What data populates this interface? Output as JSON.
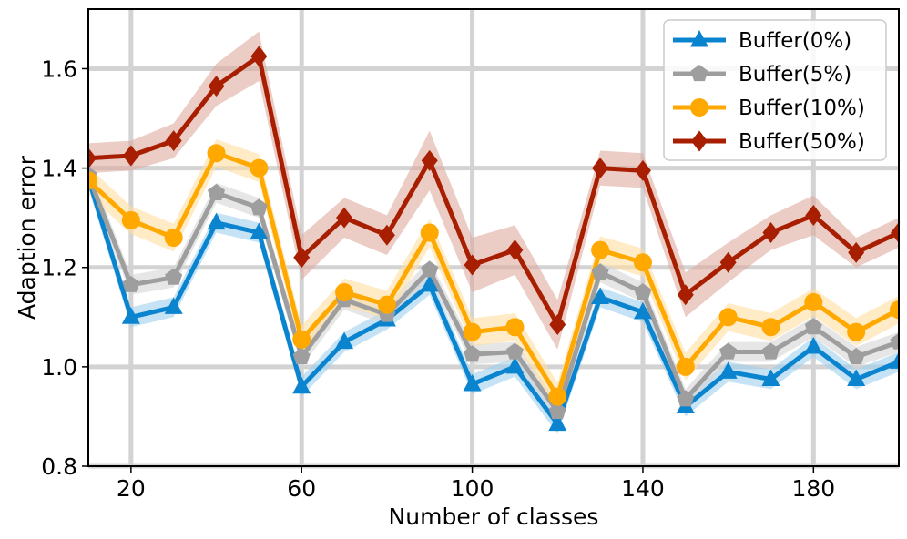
{
  "chart_data": {
    "type": "line",
    "xlabel": "Number of classes",
    "ylabel": "Adaption error",
    "xlim": [
      10,
      200
    ],
    "ylim": [
      0.8,
      1.72
    ],
    "xticks": [
      20,
      60,
      100,
      140,
      180
    ],
    "yticks": [
      0.8,
      1.0,
      1.2,
      1.4,
      1.6
    ],
    "xtick_labels": [
      "20",
      "60",
      "100",
      "140",
      "180"
    ],
    "ytick_labels": [
      "0.8",
      "1.0",
      "1.2",
      "1.4",
      "1.6"
    ],
    "grid": true,
    "legend_position": "top-right",
    "x": [
      10,
      20,
      30,
      40,
      50,
      60,
      70,
      80,
      90,
      100,
      110,
      120,
      130,
      140,
      150,
      160,
      170,
      180,
      190,
      200
    ],
    "series": [
      {
        "name": "Buffer(0%)",
        "color": "#0a84cf",
        "band_color": "#9fd0ef",
        "marker": "triangle",
        "values": [
          1.38,
          1.1,
          1.12,
          1.29,
          1.27,
          0.96,
          1.05,
          1.095,
          1.165,
          0.965,
          1.0,
          0.885,
          1.14,
          1.11,
          0.92,
          0.99,
          0.975,
          1.04,
          0.975,
          1.01
        ],
        "band": 0.02
      },
      {
        "name": "Buffer(5%)",
        "color": "#9e9e9e",
        "band_color": "#d6d6d6",
        "marker": "pentagon",
        "values": [
          1.385,
          1.165,
          1.18,
          1.35,
          1.32,
          1.02,
          1.135,
          1.105,
          1.195,
          1.025,
          1.03,
          0.91,
          1.19,
          1.15,
          0.935,
          1.03,
          1.03,
          1.08,
          1.02,
          1.05
        ],
        "band": 0.02
      },
      {
        "name": "Buffer(10%)",
        "color": "#ffa800",
        "band_color": "#ffdea0",
        "marker": "circle",
        "values": [
          1.375,
          1.295,
          1.26,
          1.43,
          1.4,
          1.055,
          1.15,
          1.125,
          1.27,
          1.07,
          1.08,
          0.94,
          1.235,
          1.21,
          1.0,
          1.1,
          1.08,
          1.13,
          1.07,
          1.115
        ],
        "band": 0.028
      },
      {
        "name": "Buffer(50%)",
        "color": "#a81e00",
        "band_color": "#e0aba0",
        "marker": "diamond",
        "values": [
          1.42,
          1.425,
          1.455,
          1.565,
          1.625,
          1.22,
          1.3,
          1.265,
          1.415,
          1.205,
          1.235,
          1.085,
          1.4,
          1.395,
          1.145,
          1.21,
          1.27,
          1.305,
          1.23,
          1.27
        ],
        "band_lo": [
          0.03,
          0.03,
          0.035,
          0.04,
          0.05,
          0.045,
          0.04,
          0.04,
          0.06,
          0.055,
          0.05,
          0.05,
          0.035,
          0.035,
          0.045,
          0.04,
          0.035,
          0.04,
          0.03,
          0.03
        ],
        "band_hi": [
          0.03,
          0.03,
          0.035,
          0.045,
          0.05,
          0.045,
          0.04,
          0.04,
          0.06,
          0.055,
          0.05,
          0.05,
          0.035,
          0.035,
          0.045,
          0.04,
          0.035,
          0.04,
          0.03,
          0.03
        ]
      }
    ]
  }
}
